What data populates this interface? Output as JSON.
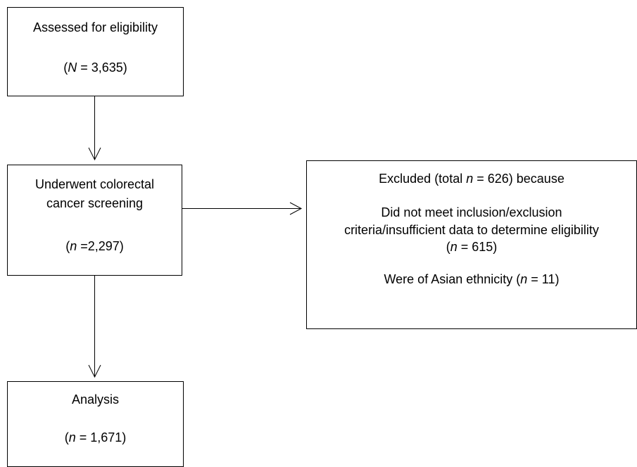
{
  "diagram": {
    "nodes": {
      "assessed": {
        "title": "Assessed for eligibility",
        "count_prefix": "(",
        "count_var": "N",
        "count_value": " = 3,635)"
      },
      "screening": {
        "title_line1": "Underwent colorectal",
        "title_line2": "cancer screening",
        "count_prefix": "(",
        "count_var": "n",
        "count_value": " =2,297)"
      },
      "excluded": {
        "header_prefix": "Excluded (total ",
        "header_var": "n",
        "header_value": " = 626) because",
        "reason1_line1": "Did not meet inclusion/exclusion",
        "reason1_line2": "criteria/insufficient data to determine eligibility",
        "reason1_count_prefix": "(",
        "reason1_count_var": "n",
        "reason1_count_value": " = 615)",
        "reason2_prefix": "Were of Asian ethnicity (",
        "reason2_var": "n",
        "reason2_value": " = 11)"
      },
      "analysis": {
        "title": "Analysis",
        "count_prefix": "(",
        "count_var": "n",
        "count_value": " = 1,671)"
      }
    },
    "edges": [
      {
        "from": "assessed",
        "to": "screening"
      },
      {
        "from": "screening",
        "to": "excluded"
      },
      {
        "from": "screening",
        "to": "analysis"
      }
    ]
  }
}
